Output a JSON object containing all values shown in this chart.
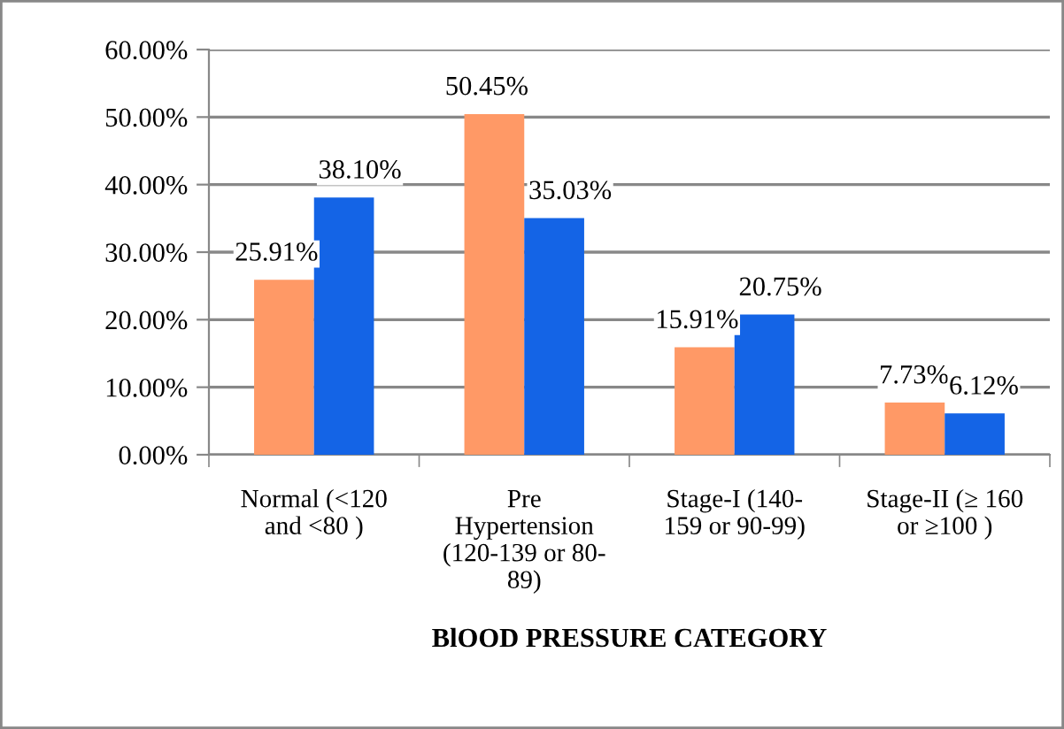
{
  "chart_data": {
    "type": "bar",
    "categories": [
      "Normal (<120\nand <80 )",
      "Pre\nHypertension\n(120-139 or 80-\n89)",
      "Stage-I (140-\n159 or 90-99)",
      "Stage-II (≥ 160\nor ≥100 )"
    ],
    "series": [
      {
        "color": "#ff9966",
        "values": [
          25.91,
          50.45,
          15.91,
          7.73
        ],
        "value_labels": [
          "25.91%",
          "50.45%",
          "15.91%",
          "7.73%"
        ]
      },
      {
        "color": "#1464e6",
        "values": [
          38.1,
          35.03,
          20.75,
          6.12
        ],
        "value_labels": [
          "38.10%",
          "35.03%",
          "20.75%",
          "6.12%"
        ]
      }
    ],
    "xlabel": "BlOOD PRESSURE CATEGORY",
    "ylim": [
      0,
      60
    ],
    "yticks": [
      {
        "value": 0,
        "label": "0.00%"
      },
      {
        "value": 10,
        "label": "10.00%"
      },
      {
        "value": 20,
        "label": "20.00%"
      },
      {
        "value": 30,
        "label": "30.00%"
      },
      {
        "value": 40,
        "label": "40.00%"
      },
      {
        "value": 50,
        "label": "50.00%"
      },
      {
        "value": 60,
        "label": "60.00%"
      }
    ],
    "grid": "y",
    "legend": false
  }
}
